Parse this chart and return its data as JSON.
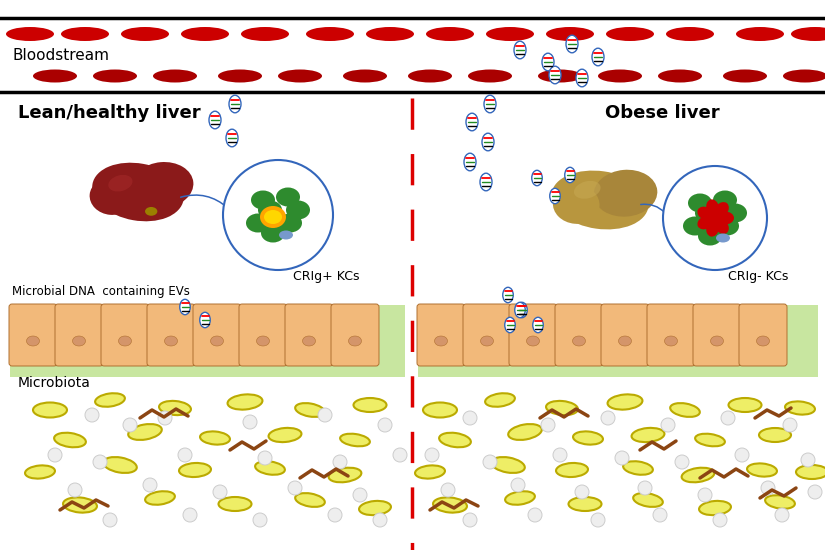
{
  "label_bloodstream": "Bloodstream",
  "label_lean": "Lean/healthy liver",
  "label_obese": "Obese liver",
  "label_microbiota": "Microbiota",
  "label_microbial_dna": "Microbial DNA  containing EVs",
  "label_crig_plus": "CRIg+ KCs",
  "label_crig_minus": "CRIg- KCs",
  "bg_color": "#ffffff",
  "rbc_color": "#cc0000",
  "gut_cell_color": "#f2b97a",
  "gut_bg_color": "#c8e6a0",
  "bacteria_yellow_fill": "#eeee66",
  "bacteria_yellow_edge": "#bbaa00",
  "bacteria_brown": "#8B4513",
  "sphere_color": "#eeeeee",
  "sphere_edge": "#cccccc",
  "ev_edge": "#3366bb",
  "kc_green": "#2e8b2e",
  "liver_lean_main": "#8B1a1a",
  "liver_obese_main": "#b8963e",
  "divider_color": "#dd0000"
}
